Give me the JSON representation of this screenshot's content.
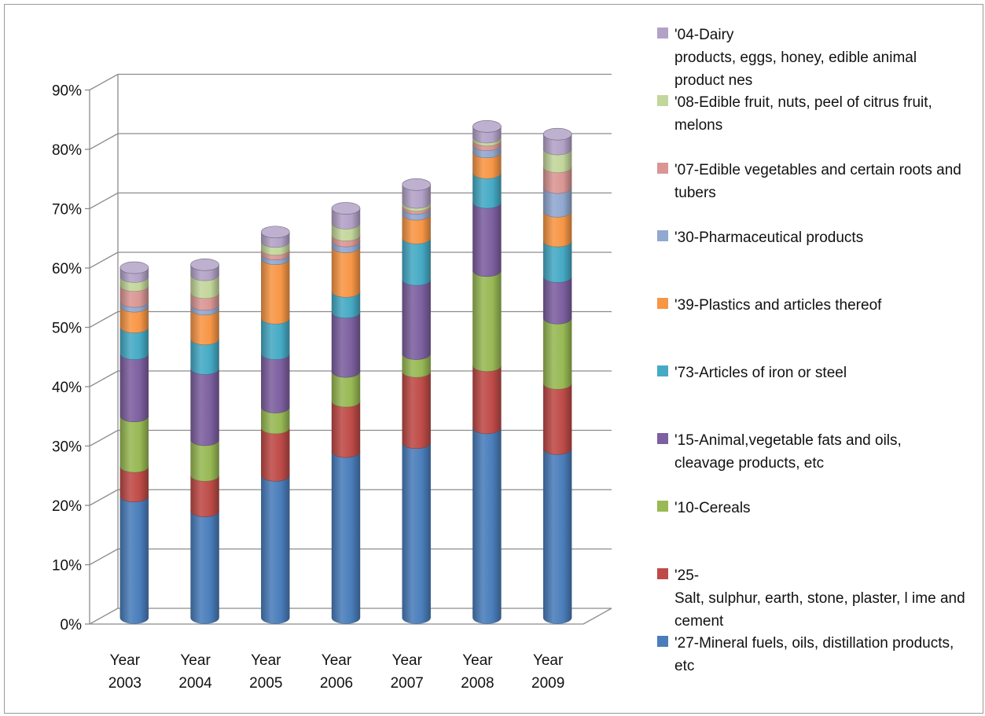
{
  "chart_data": {
    "type": "bar",
    "stacked": true,
    "style": "3d-cylinder",
    "categories": [
      "Year\n2003",
      "Year\n2004",
      "Year\n2005",
      "Year\n2006",
      "Year\n2007",
      "Year\n2008",
      "Year\n2009"
    ],
    "ylim": [
      0,
      90
    ],
    "yticks": [
      "0%",
      "10%",
      "20%",
      "30%",
      "40%",
      "50%",
      "60%",
      "70%",
      "80%",
      "90%"
    ],
    "grid": true,
    "legend_position": "right",
    "series": [
      {
        "name": "'27-Mineral fuels, oils, distillation products, etc",
        "color": "#4a7ebb",
        "values": [
          20.5,
          18.0,
          24.0,
          28.0,
          29.5,
          32.0,
          28.5
        ]
      },
      {
        "name": "'25-\nSalt, sulphur, earth, stone, plaster, l ime and cement",
        "color": "#be4b48",
        "values": [
          5.0,
          6.0,
          8.0,
          8.5,
          12.0,
          10.5,
          11.0
        ]
      },
      {
        "name": "'10-Cereals",
        "color": "#98b954",
        "values": [
          8.5,
          6.0,
          3.5,
          5.0,
          3.0,
          16.0,
          11.0
        ]
      },
      {
        "name": "'15-Animal,vegetable fats and oils, cleavage products, etc",
        "color": "#7d60a0",
        "values": [
          10.5,
          12.0,
          9.0,
          10.0,
          12.5,
          11.5,
          7.0
        ]
      },
      {
        "name": "'73-Articles of iron or steel",
        "color": "#46aac5",
        "values": [
          4.5,
          5.0,
          6.0,
          3.5,
          7.0,
          5.0,
          6.0
        ]
      },
      {
        "name": "'39-Plastics and articles thereof",
        "color": "#f79646",
        "values": [
          3.5,
          5.0,
          10.0,
          7.5,
          4.0,
          3.5,
          5.0
        ]
      },
      {
        "name": "'30-Pharmaceutical products",
        "color": "#91a8d0",
        "values": [
          0.8,
          0.8,
          0.8,
          1.0,
          1.0,
          1.2,
          4.0
        ]
      },
      {
        "name": "'07-Edible vegetables and certain roots and tubers",
        "color": "#d99694",
        "values": [
          2.7,
          2.0,
          0.8,
          1.0,
          0.5,
          0.8,
          3.5
        ]
      },
      {
        "name": "'08-Edible fruit, nuts, peel of citrus fruit, melons",
        "color": "#c3d69b",
        "values": [
          1.5,
          3.0,
          1.3,
          2.0,
          0.5,
          0.5,
          3.0
        ]
      },
      {
        "name": "'04-Dairy\nproducts, eggs, honey, edible animal product nes",
        "color": "#b3a2c7",
        "values": [
          1.5,
          1.7,
          1.6,
          2.5,
          3.0,
          1.8,
          2.5
        ]
      }
    ]
  }
}
